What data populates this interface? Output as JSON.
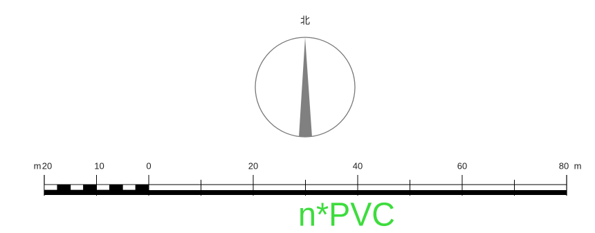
{
  "north_label": "北",
  "scale": {
    "unit": "m",
    "left_ticks": [
      20,
      10
    ],
    "right_ticks": [
      0,
      20,
      40,
      60,
      80
    ]
  },
  "annotation": "n*PVC"
}
